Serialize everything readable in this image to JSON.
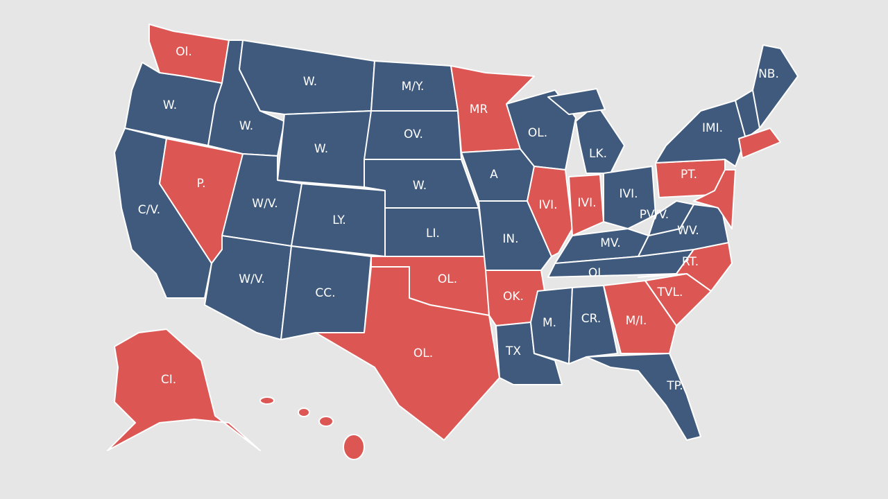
{
  "map": {
    "states": [
      {
        "label": "Ol."
      },
      {
        "label": "W."
      },
      {
        "label": "C/V."
      },
      {
        "label": "P."
      },
      {
        "label": "W."
      },
      {
        "label": "W."
      },
      {
        "label": "W."
      },
      {
        "label": "W/V."
      },
      {
        "label": "LY."
      },
      {
        "label": "W/V."
      },
      {
        "label": "CC."
      },
      {
        "label": "M/Y."
      },
      {
        "label": "OV."
      },
      {
        "label": "W."
      },
      {
        "label": "LI."
      },
      {
        "label": "OL."
      },
      {
        "label": "OL."
      },
      {
        "label": "MR"
      },
      {
        "label": "A"
      },
      {
        "label": "IN."
      },
      {
        "label": "OK."
      },
      {
        "label": "TX"
      },
      {
        "label": "OL."
      },
      {
        "label": "IVI."
      },
      {
        "label": "LK."
      },
      {
        "label": "IVI."
      },
      {
        "label": "IVI."
      },
      {
        "label": "MV."
      },
      {
        "label": "OL."
      },
      {
        "label": "M."
      },
      {
        "label": "CR."
      },
      {
        "label": "M/I."
      },
      {
        "label": "TP."
      },
      {
        "label": "TVL."
      },
      {
        "label": "RT."
      },
      {
        "label": "WV."
      },
      {
        "label": "PV/V."
      },
      {
        "label": "PT."
      },
      {
        "label": "IMI."
      },
      {
        "label": "NB."
      },
      {
        "label": "CI."
      }
    ]
  }
}
